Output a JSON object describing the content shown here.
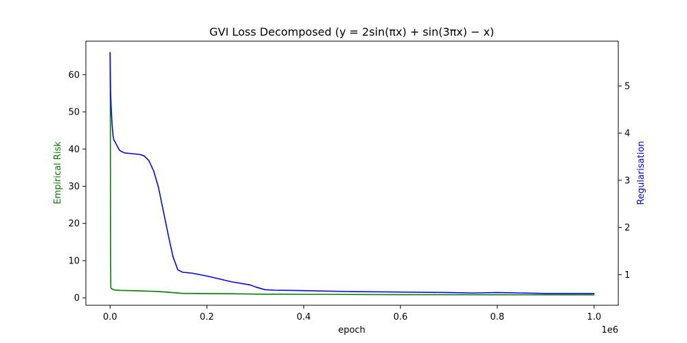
{
  "chart_data": {
    "type": "line",
    "title": "GVI Loss Decomposed (y = 2sin(πx) + sin(3πx) − x)",
    "xlabel": "epoch",
    "x_offset_label": "1e6",
    "x_scale": 1000000,
    "xlim": [
      -0.05,
      1.05
    ],
    "xticks": [
      0.0,
      0.2,
      0.4,
      0.6,
      0.8,
      1.0
    ],
    "xtick_labels": [
      "0.0",
      "0.2",
      "0.4",
      "0.6",
      "0.8",
      "1.0"
    ],
    "y_left": {
      "label": "Empirical Risk",
      "color": "#008000",
      "lim": [
        -2.0,
        69.0
      ],
      "ticks": [
        0,
        10,
        20,
        30,
        40,
        50,
        60
      ],
      "tick_labels": [
        "0",
        "10",
        "20",
        "30",
        "40",
        "50",
        "60"
      ]
    },
    "y_right": {
      "label": "Regularisation",
      "color": "#0000ff",
      "lim": [
        0.35,
        5.95
      ],
      "ticks": [
        1,
        2,
        3,
        4,
        5
      ],
      "tick_labels": [
        "1",
        "2",
        "3",
        "4",
        "5"
      ]
    },
    "grid": false,
    "series": [
      {
        "axis": "left",
        "color": "#008000",
        "x": [
          0.0,
          0.0005,
          0.001,
          0.0015,
          0.002,
          0.003,
          0.005,
          0.01,
          0.02,
          0.05,
          0.08,
          0.1,
          0.12,
          0.14,
          0.15,
          0.2,
          0.25,
          0.3,
          0.4,
          0.5,
          0.6,
          0.8,
          1.0
        ],
        "values": [
          66.0,
          52.0,
          10.0,
          2.9,
          2.6,
          2.5,
          2.3,
          2.1,
          2.0,
          1.9,
          1.8,
          1.7,
          1.5,
          1.3,
          1.2,
          1.15,
          1.1,
          1.0,
          0.95,
          0.9,
          0.85,
          0.82,
          0.8
        ]
      },
      {
        "axis": "right",
        "color": "#0000ff",
        "x": [
          0.0,
          0.001,
          0.002,
          0.004,
          0.006,
          0.008,
          0.01,
          0.015,
          0.02,
          0.03,
          0.04,
          0.06,
          0.07,
          0.08,
          0.09,
          0.1,
          0.11,
          0.12,
          0.13,
          0.14,
          0.15,
          0.17,
          0.2,
          0.25,
          0.29,
          0.3,
          0.32,
          0.34,
          0.4,
          0.5,
          0.6,
          0.7,
          0.75,
          0.8,
          0.85,
          0.9,
          1.0
        ],
        "values": [
          5.7,
          4.9,
          4.6,
          4.2,
          3.95,
          3.85,
          3.82,
          3.72,
          3.63,
          3.58,
          3.57,
          3.55,
          3.52,
          3.42,
          3.2,
          2.85,
          2.35,
          1.85,
          1.38,
          1.1,
          1.05,
          1.03,
          0.97,
          0.85,
          0.78,
          0.74,
          0.68,
          0.67,
          0.66,
          0.64,
          0.63,
          0.62,
          0.61,
          0.62,
          0.61,
          0.6,
          0.6
        ]
      }
    ]
  }
}
